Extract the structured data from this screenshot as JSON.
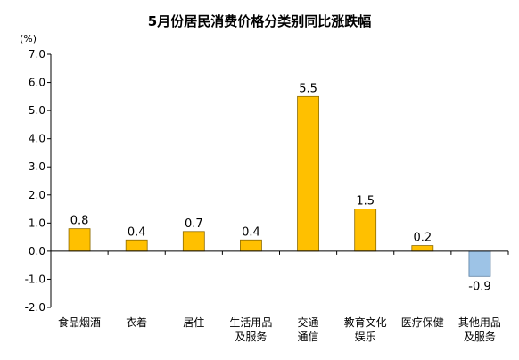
{
  "chart_data": {
    "type": "bar",
    "title": "5月份居民消费价格分类别同比涨跌幅",
    "unit_label": "(%)",
    "xlabel": "",
    "ylabel": "",
    "ylim": [
      -2.0,
      7.0
    ],
    "yticks": [
      "7.0",
      "6.0",
      "5.0",
      "4.0",
      "3.0",
      "2.0",
      "1.0",
      "0.0",
      "-1.0",
      "-2.0"
    ],
    "grid": false,
    "legend": "none",
    "categories": [
      [
        "食品烟酒"
      ],
      [
        "衣着"
      ],
      [
        "居住"
      ],
      [
        "生活用品",
        "及服务"
      ],
      [
        "交通",
        "通信"
      ],
      [
        "教育文化",
        "娱乐"
      ],
      [
        "医疗保健"
      ],
      [
        "其他用品",
        "及服务"
      ]
    ],
    "values": [
      0.8,
      0.4,
      0.7,
      0.4,
      5.5,
      1.5,
      0.2,
      -0.9
    ],
    "data_labels": [
      "0.8",
      "0.4",
      "0.7",
      "0.4",
      "5.5",
      "1.5",
      "0.2",
      "-0.9"
    ],
    "colors": {
      "positive_fill": "#FFC000",
      "positive_stroke": "#8C6A00",
      "negative_fill": "#9DC3E6",
      "negative_stroke": "#5B7FA3",
      "axis": "#000000"
    }
  }
}
